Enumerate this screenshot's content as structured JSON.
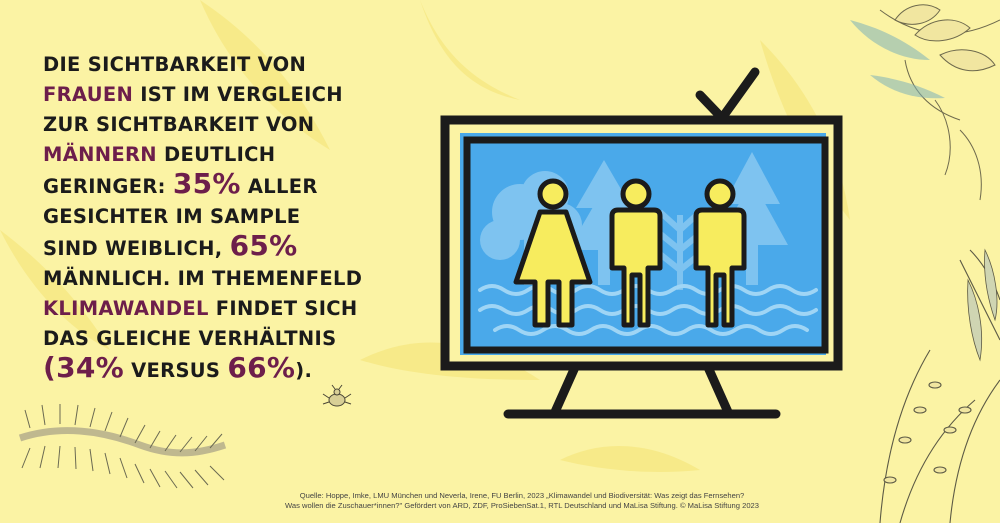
{
  "headline": {
    "line1": "DIE SICHTBARKEIT VON",
    "line2_highlight": "FRAUEN",
    "line2_rest": " IST IM VERGLEICH",
    "line3": "ZUR SICHTBARKEIT VON",
    "line4_highlight": "MÄNNERN",
    "line4_rest": " DEUTLICH",
    "line5_pre": "GERINGER: ",
    "line5_number": "35%",
    "line5_rest": " ALLER",
    "line6": "GESICHTER IM SAMPLE",
    "line7_pre": "SIND WEIBLICH, ",
    "line7_number": "65%",
    "line8": "MÄNNLICH. IM THEMENFELD",
    "line9_highlight": "KLIMAWANDEL",
    "line9_rest": " FINDET SICH",
    "line10": "DAS GLEICHE VERHÄLTNIS",
    "line11_open": "(",
    "line11_number1": "34%",
    "line11_mid": " VERSUS ",
    "line11_number2": "66%",
    "line11_close": ")."
  },
  "source": {
    "line1": "Quelle: Hoppe, Imke, LMU München und Neverla, Irene, FU Berlin, 2023 „Klimawandel und Biodiversität: Was zeigt das Fernsehen?",
    "line2": "Was wollen die Zuschauer*innen?\" Gefördert von ARD, ZDF, ProSiebenSat.1, RTL Deutschland und MaLisa Stiftung. © MaLisa Stiftung 2023"
  },
  "colors": {
    "background": "#fbf3a4",
    "highlight": "#6d1e4b",
    "screen": "#4aa9ea",
    "figure": "#f7ec5e",
    "outline": "#1b1b1b"
  },
  "icons": {
    "tv": "tv-icon",
    "figures": [
      "woman-figure-icon",
      "man-figure-icon",
      "man-figure-icon"
    ],
    "decorations": [
      "leaf-illustration",
      "centipede-illustration",
      "beetle-illustration",
      "plant-illustration"
    ]
  }
}
